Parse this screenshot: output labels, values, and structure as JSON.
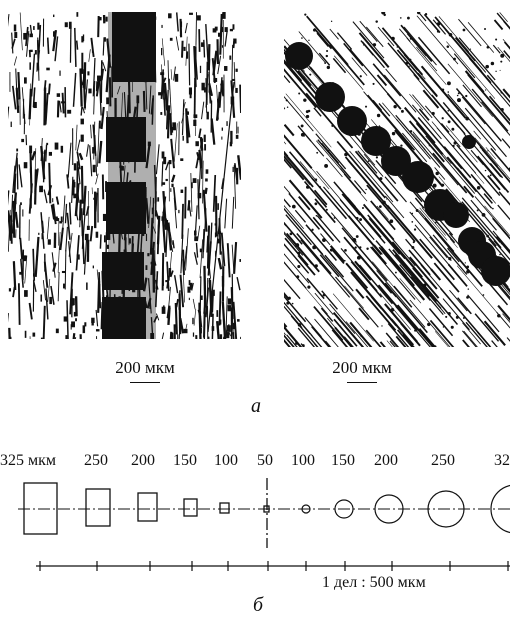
{
  "photos": {
    "left": {
      "scale_label": "200 мкм"
    },
    "right": {
      "scale_label": "200 мкм"
    }
  },
  "panel_a_label": "а",
  "panel_b_label": "б",
  "diagram": {
    "size_labels": [
      "325 мкм",
      "250",
      "200",
      "150",
      "100",
      "50",
      "100",
      "150",
      "200",
      "250",
      "32"
    ],
    "scale_caption": "1 дел : 500 мкм"
  }
}
